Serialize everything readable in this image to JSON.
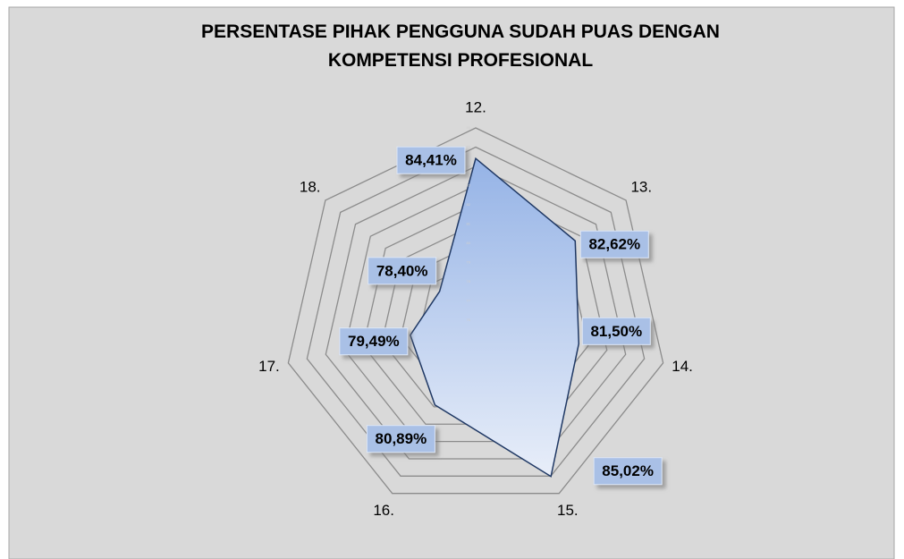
{
  "chart_data": {
    "type": "radar",
    "title": "PERSENTASE PIHAK PENGGUNA SUDAH PUAS DENGAN KOMPETENSI PROFESIONAL",
    "categories": [
      "12.",
      "13.",
      "14.",
      "15.",
      "16.",
      "17.",
      "18."
    ],
    "values": [
      84.41,
      82.62,
      81.5,
      85.02,
      80.89,
      79.49,
      78.4
    ],
    "value_labels": [
      "84,41%",
      "82,62%",
      "81,50%",
      "85,02%",
      "80,89%",
      "79,49%",
      "78,40%"
    ],
    "color": "#1f3864",
    "rlim": [
      76,
      86
    ],
    "rticks": [
      76,
      77,
      78,
      79,
      80,
      81,
      82,
      83,
      84,
      85,
      86
    ],
    "grid": true
  }
}
